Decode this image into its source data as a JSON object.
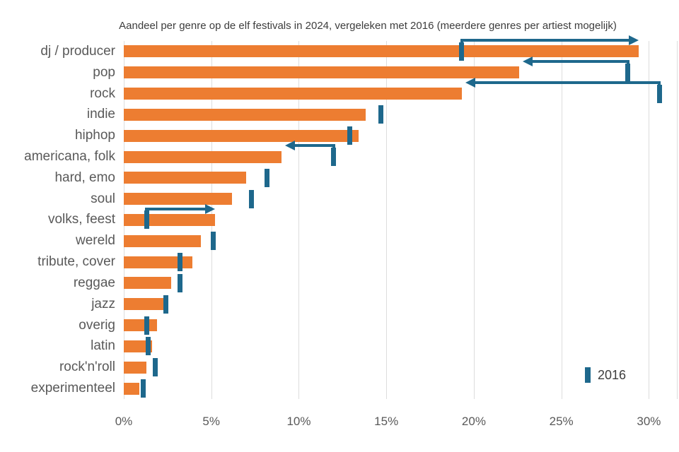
{
  "title": "Aandeel per genre op de elf festivals in 2024, vergeleken met 2016 (meerdere genres per artiest mogelijk)",
  "legend": {
    "label": "2016"
  },
  "colors": {
    "bar_2024": "#ED7D31",
    "marker_2016": "#1E688C",
    "gridline": "#DDDDDD",
    "label_text": "#595959",
    "title_text": "#3D3D3D",
    "background": "#FFFFFF"
  },
  "chart_data": {
    "type": "bar",
    "orientation": "horizontal",
    "title": "Aandeel per genre op de elf festivals in 2024, vergeleken met 2016 (meerdere genres per artiest mogelijk)",
    "categories": [
      "dj / producer",
      "pop",
      "rock",
      "indie",
      "hiphop",
      "americana, folk",
      "hard, emo",
      "soul",
      "volks, feest",
      "wereld",
      "tribute, cover",
      "reggae",
      "jazz",
      "overig",
      "latin",
      "rock'n'roll",
      "experimenteel"
    ],
    "series": [
      {
        "name": "2024",
        "values": [
          29.4,
          22.6,
          19.3,
          13.8,
          13.4,
          9.0,
          7.0,
          6.2,
          5.2,
          4.4,
          3.9,
          2.7,
          2.3,
          1.9,
          1.6,
          1.3,
          0.9
        ]
      },
      {
        "name": "2016",
        "values": [
          19.3,
          28.8,
          30.6,
          14.7,
          12.9,
          12.0,
          8.2,
          7.3,
          1.3,
          5.1,
          3.2,
          3.2,
          2.4,
          1.3,
          1.4,
          1.8,
          1.1
        ]
      }
    ],
    "change_arrows": [
      {
        "category": "dj / producer",
        "from": 19.3,
        "to": 29.4,
        "direction": "right"
      },
      {
        "category": "pop",
        "from": 28.8,
        "to": 22.6,
        "direction": "left"
      },
      {
        "category": "rock",
        "from": 30.6,
        "to": 19.3,
        "direction": "left"
      },
      {
        "category": "americana, folk",
        "from": 12.0,
        "to": 9.0,
        "direction": "left"
      },
      {
        "category": "volks, feest",
        "from": 1.3,
        "to": 5.2,
        "direction": "right"
      }
    ],
    "x_ticks": [
      {
        "value": 0,
        "label": "0%"
      },
      {
        "value": 5,
        "label": "5%"
      },
      {
        "value": 10,
        "label": "10%"
      },
      {
        "value": 15,
        "label": "15%"
      },
      {
        "value": 20,
        "label": "20%"
      },
      {
        "value": 25,
        "label": "25%"
      },
      {
        "value": 30,
        "label": "30%"
      }
    ],
    "xlim": [
      0,
      31.6
    ],
    "xlabel": "",
    "ylabel": "",
    "grid": "vertical",
    "legend_position": "bottom-right"
  }
}
